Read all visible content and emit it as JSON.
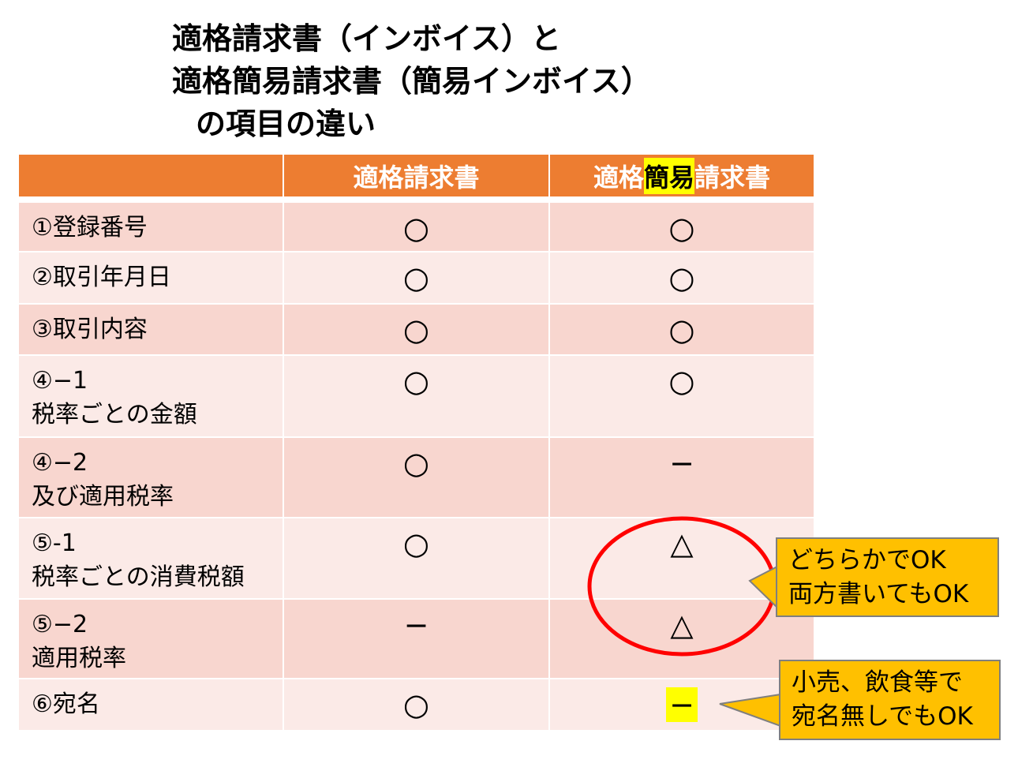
{
  "title": {
    "line1": "適格請求書（インボイス）と",
    "line2": "適格簡易請求書（簡易インボイス）",
    "line3": "の項目の違い"
  },
  "table": {
    "headers": {
      "col1": "適格請求書",
      "col2_pre": "適格",
      "col2_highlight": "簡易",
      "col2_post": "請求書"
    },
    "rows": [
      {
        "label1": "①登録番号",
        "label2": "",
        "qualified": "○",
        "simplified": "○"
      },
      {
        "label1": "②取引年月日",
        "label2": "",
        "qualified": "○",
        "simplified": "○"
      },
      {
        "label1": "③取引内容",
        "label2": "",
        "qualified": "○",
        "simplified": "○"
      },
      {
        "label1": "④−1",
        "label2": "税率ごとの金額",
        "qualified": "○",
        "simplified": "○"
      },
      {
        "label1": "④−2",
        "label2": "及び適用税率",
        "qualified": "○",
        "simplified": "−"
      },
      {
        "label1": "⑤-1",
        "label2": "税率ごとの消費税額",
        "qualified": "○",
        "simplified": "△"
      },
      {
        "label1": "⑤−2",
        "label2": "適用税率",
        "qualified": "−",
        "simplified": "△"
      },
      {
        "label1": "⑥宛名",
        "label2": "",
        "qualified": "○",
        "simplified": "−"
      }
    ]
  },
  "callouts": [
    {
      "line1": "どちらかでOK",
      "line2": "両方書いてもOK"
    },
    {
      "line1": "小売、飲食等で",
      "line2": "宛名無しでもOK"
    }
  ],
  "colors": {
    "header": "#ED7D31",
    "row_odd": "#F8D6CF",
    "row_even": "#FBEAE7",
    "highlight": "#FFFF00",
    "ellipse": "#FF0000",
    "callout": "#FFC000"
  }
}
